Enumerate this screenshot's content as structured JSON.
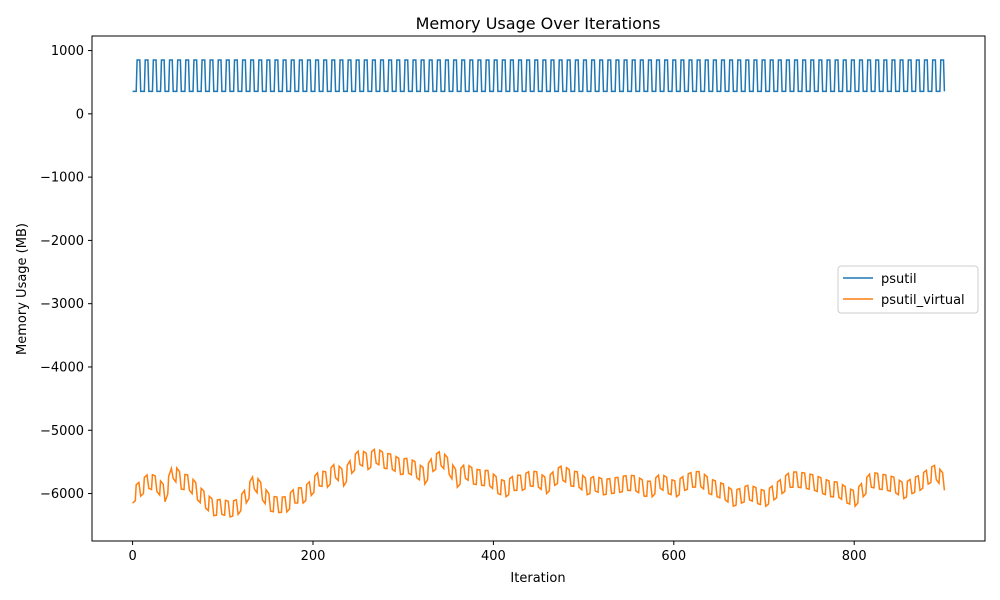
{
  "chart_data": {
    "type": "line",
    "title": "Memory Usage Over Iterations",
    "xlabel": "Iteration",
    "ylabel": "Memory Usage (MB)",
    "xlim": [
      -45,
      945
    ],
    "ylim": [
      -6750,
      1230
    ],
    "x_ticks": [
      0,
      200,
      400,
      600,
      800
    ],
    "y_ticks": [
      1000,
      0,
      -1000,
      -2000,
      -3000,
      -4000,
      -5000,
      -6000
    ],
    "y_tick_labels": [
      "1000",
      "0",
      "−1000",
      "−2000",
      "−3000",
      "−4000",
      "−5000",
      "−6000"
    ],
    "grid": false,
    "legend_position": "center-right",
    "series": [
      {
        "name": "psutil",
        "color": "#1f77b4",
        "x_range": [
          0,
          900
        ],
        "pattern": "square wave, period 9 iterations, alternating low/high",
        "low": 355,
        "high": 850
      },
      {
        "name": "psutil_virtual",
        "color": "#ff7f0e",
        "x_range": [
          0,
          900
        ],
        "points": [
          [
            0,
            -6150
          ],
          [
            9,
            -6040
          ],
          [
            18,
            -5920
          ],
          [
            27,
            -5970
          ],
          [
            36,
            -6130
          ],
          [
            45,
            -5760
          ],
          [
            54,
            -5930
          ],
          [
            63,
            -5950
          ],
          [
            72,
            -6100
          ],
          [
            81,
            -6230
          ],
          [
            90,
            -6350
          ],
          [
            99,
            -6330
          ],
          [
            108,
            -6370
          ],
          [
            117,
            -6330
          ],
          [
            126,
            -6150
          ],
          [
            135,
            -5930
          ],
          [
            144,
            -6100
          ],
          [
            153,
            -6280
          ],
          [
            162,
            -6300
          ],
          [
            171,
            -6290
          ],
          [
            180,
            -6150
          ],
          [
            189,
            -6150
          ],
          [
            198,
            -6030
          ],
          [
            207,
            -5880
          ],
          [
            216,
            -5900
          ],
          [
            225,
            -5750
          ],
          [
            234,
            -5880
          ],
          [
            243,
            -5680
          ],
          [
            252,
            -5540
          ],
          [
            261,
            -5620
          ],
          [
            270,
            -5520
          ],
          [
            279,
            -5600
          ],
          [
            288,
            -5620
          ],
          [
            297,
            -5700
          ],
          [
            306,
            -5680
          ],
          [
            315,
            -5750
          ],
          [
            324,
            -5850
          ],
          [
            333,
            -5650
          ],
          [
            342,
            -5560
          ],
          [
            351,
            -5700
          ],
          [
            360,
            -5900
          ],
          [
            369,
            -5760
          ],
          [
            378,
            -5850
          ],
          [
            387,
            -5870
          ],
          [
            396,
            -5880
          ],
          [
            405,
            -6000
          ],
          [
            414,
            -6050
          ],
          [
            423,
            -5950
          ],
          [
            432,
            -5950
          ],
          [
            441,
            -5880
          ],
          [
            450,
            -5900
          ],
          [
            459,
            -6000
          ],
          [
            468,
            -5870
          ],
          [
            477,
            -5790
          ],
          [
            486,
            -5880
          ],
          [
            495,
            -5900
          ],
          [
            504,
            -6020
          ],
          [
            513,
            -5960
          ],
          [
            522,
            -6020
          ],
          [
            531,
            -6000
          ],
          [
            540,
            -5980
          ],
          [
            549,
            -5950
          ],
          [
            558,
            -5960
          ],
          [
            567,
            -6040
          ],
          [
            576,
            -6050
          ],
          [
            585,
            -5920
          ],
          [
            594,
            -6000
          ],
          [
            603,
            -6050
          ],
          [
            612,
            -5950
          ],
          [
            621,
            -5900
          ],
          [
            630,
            -5890
          ],
          [
            639,
            -6000
          ],
          [
            648,
            -6050
          ],
          [
            657,
            -6100
          ],
          [
            666,
            -6200
          ],
          [
            675,
            -6150
          ],
          [
            684,
            -6100
          ],
          [
            693,
            -6160
          ],
          [
            702,
            -6200
          ],
          [
            711,
            -6100
          ],
          [
            720,
            -6000
          ],
          [
            729,
            -5900
          ],
          [
            738,
            -5900
          ],
          [
            747,
            -5920
          ],
          [
            756,
            -5950
          ],
          [
            765,
            -6000
          ],
          [
            774,
            -6050
          ],
          [
            783,
            -6060
          ],
          [
            792,
            -6150
          ],
          [
            801,
            -6200
          ],
          [
            810,
            -6050
          ],
          [
            819,
            -5900
          ],
          [
            828,
            -5930
          ],
          [
            837,
            -5950
          ],
          [
            846,
            -5990
          ],
          [
            855,
            -6080
          ],
          [
            864,
            -6000
          ],
          [
            873,
            -5950
          ],
          [
            882,
            -5850
          ],
          [
            891,
            -5780
          ],
          [
            900,
            -5950
          ]
        ],
        "spike_amplitude": 240
      }
    ]
  }
}
